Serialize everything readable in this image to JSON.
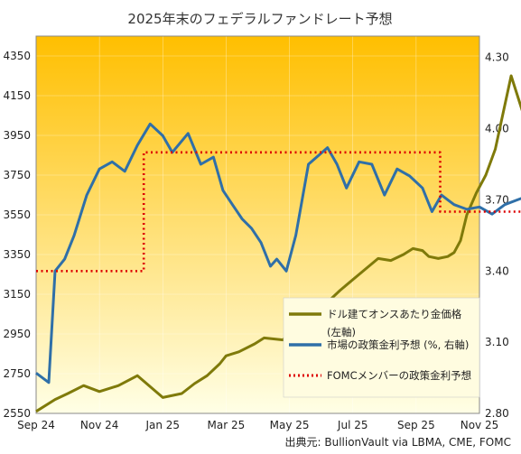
{
  "chart_data": {
    "type": "line",
    "title": "2025年末のフェデラルファンドレート予想",
    "source": "出典元: BullionVault  via LBMA, CME, FOMC",
    "x_ticks": [
      "Sep 24",
      "Nov 24",
      "Jan 25",
      "Mar 25",
      "May 25",
      "Jul 25",
      "Sep 25",
      "Nov 25"
    ],
    "y_left": {
      "ticks": [
        "2550",
        "2750",
        "2950",
        "3150",
        "3350",
        "3550",
        "3750",
        "3950",
        "4150",
        "4350"
      ],
      "range": [
        2550,
        4450
      ]
    },
    "y_right": {
      "ticks": [
        "2.80",
        "3.10",
        "3.40",
        "3.70",
        "4.00",
        "4.30"
      ],
      "range": [
        2.8,
        4.39
      ]
    },
    "legend": {
      "gold_label": "ドル建てオンスあたり金価格",
      "gold_sub": "(左軸)",
      "market_label": "市場の政策金利予想 (%, 右軸)",
      "fomc_label": "FOMCメンバーの政策金利予想"
    },
    "colors": {
      "gold": "#7f7a0a",
      "market": "#2f6fa8",
      "fomc": "#dd0000",
      "bg_top": "#ffbf00",
      "bg_bottom": "#ffffe6"
    },
    "series": [
      {
        "name": "ドル建てオンスあたり金価格",
        "axis": "left",
        "x": [
          0,
          0.3,
          0.5,
          0.75,
          1.0,
          1.3,
          1.6,
          2.0,
          2.3,
          2.5,
          2.7,
          2.9,
          3.0,
          3.2,
          3.45,
          3.6,
          3.9,
          4.1,
          4.3,
          4.6,
          4.8,
          5.1,
          5.4,
          5.6,
          5.8,
          5.95,
          6.1,
          6.2,
          6.35,
          6.5,
          6.6,
          6.7,
          6.8,
          6.95,
          7.1,
          7.25,
          7.5,
          7.75,
          7.95
        ],
        "y": [
          2560,
          2620,
          2650,
          2690,
          2660,
          2690,
          2740,
          2630,
          2650,
          2700,
          2740,
          2800,
          2840,
          2860,
          2900,
          2930,
          2920,
          3000,
          3050,
          3110,
          3170,
          3250,
          3330,
          3320,
          3350,
          3380,
          3370,
          3340,
          3330,
          3340,
          3360,
          3420,
          3550,
          3660,
          3750,
          3880,
          4250,
          4000,
          4060
        ]
      },
      {
        "name": "市場の政策金利予想 (%, 右軸)",
        "axis": "right",
        "x": [
          0,
          0.2,
          0.3,
          0.45,
          0.6,
          0.8,
          1.0,
          1.2,
          1.4,
          1.6,
          1.8,
          2.0,
          2.15,
          2.4,
          2.6,
          2.8,
          2.95,
          3.1,
          3.25,
          3.4,
          3.55,
          3.7,
          3.8,
          3.95,
          4.1,
          4.3,
          4.6,
          4.75,
          4.9,
          5.1,
          5.3,
          5.5,
          5.7,
          5.9,
          6.1,
          6.25,
          6.4,
          6.5,
          6.6,
          6.8,
          7.0,
          7.2,
          7.4,
          7.6,
          7.8,
          7.95
        ],
        "y": [
          2.97,
          2.93,
          3.4,
          3.45,
          3.55,
          3.72,
          3.83,
          3.86,
          3.82,
          3.93,
          4.02,
          3.97,
          3.9,
          3.98,
          3.85,
          3.88,
          3.74,
          3.68,
          3.62,
          3.58,
          3.52,
          3.42,
          3.45,
          3.4,
          3.55,
          3.85,
          3.92,
          3.85,
          3.75,
          3.86,
          3.85,
          3.72,
          3.83,
          3.8,
          3.75,
          3.65,
          3.72,
          3.7,
          3.68,
          3.66,
          3.67,
          3.64,
          3.68,
          3.7,
          3.72,
          3.73
        ]
      },
      {
        "name": "FOMCメンバーの政策金利予想",
        "axis": "right",
        "x": [
          0,
          1.7,
          1.7,
          6.38,
          6.38,
          7.95
        ],
        "y": [
          3.4,
          3.4,
          3.9,
          3.9,
          3.65,
          3.65
        ]
      }
    ]
  }
}
